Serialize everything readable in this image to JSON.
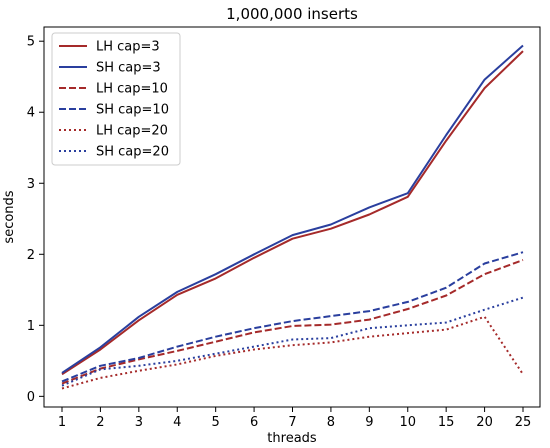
{
  "chart_data": {
    "type": "line",
    "title": "1,000,000 inserts",
    "xlabel": "threads",
    "ylabel": "seconds",
    "categories": [
      "1",
      "2",
      "3",
      "4",
      "5",
      "6",
      "7",
      "8",
      "9",
      "10",
      "15",
      "20",
      "25"
    ],
    "ylim": [
      -0.15,
      5.2
    ],
    "yticks": [
      0,
      1,
      2,
      3,
      4,
      5
    ],
    "grid": false,
    "legend_position": "top-left",
    "series": [
      {
        "name": "LH cap=3",
        "color": "#a52a2a",
        "style": "solid",
        "values": [
          0.31,
          0.66,
          1.07,
          1.43,
          1.66,
          1.95,
          2.22,
          2.36,
          2.56,
          2.81,
          3.6,
          4.34,
          4.86
        ]
      },
      {
        "name": "SH cap=3",
        "color": "#2a3f9e",
        "style": "solid",
        "values": [
          0.33,
          0.69,
          1.12,
          1.47,
          1.72,
          2.0,
          2.27,
          2.42,
          2.66,
          2.86,
          3.68,
          4.46,
          4.94
        ]
      },
      {
        "name": "LH cap=10",
        "color": "#a52a2a",
        "style": "dashed",
        "values": [
          0.18,
          0.39,
          0.52,
          0.64,
          0.77,
          0.9,
          0.99,
          1.01,
          1.08,
          1.23,
          1.42,
          1.72,
          1.92
        ]
      },
      {
        "name": "SH cap=10",
        "color": "#2a3f9e",
        "style": "dashed",
        "values": [
          0.21,
          0.43,
          0.54,
          0.7,
          0.84,
          0.96,
          1.06,
          1.13,
          1.2,
          1.33,
          1.53,
          1.87,
          2.03
        ]
      },
      {
        "name": "LH cap=20",
        "color": "#a52a2a",
        "style": "dotted",
        "values": [
          0.11,
          0.26,
          0.36,
          0.45,
          0.57,
          0.66,
          0.72,
          0.76,
          0.84,
          0.89,
          0.94,
          1.12,
          0.31
        ]
      },
      {
        "name": "SH cap=20",
        "color": "#2a3f9e",
        "style": "dotted",
        "values": [
          0.15,
          0.38,
          0.43,
          0.5,
          0.6,
          0.7,
          0.8,
          0.82,
          0.96,
          1.0,
          1.04,
          1.22,
          1.39
        ]
      }
    ]
  }
}
